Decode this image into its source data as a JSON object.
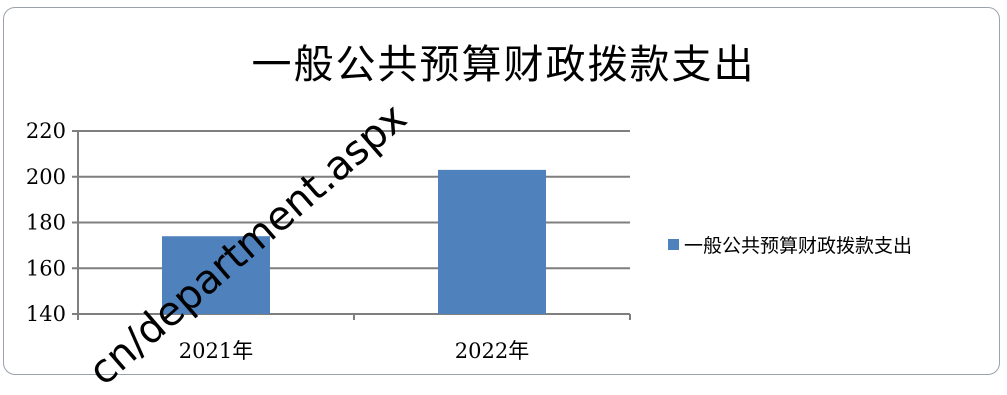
{
  "watermark": "cn/department.aspx",
  "chart_data": {
    "type": "bar",
    "title": "一般公共预算财政拨款支出",
    "categories": [
      "2021年",
      "2022年"
    ],
    "series": [
      {
        "name": "一般公共预算财政拨款支出",
        "values": [
          174,
          203
        ],
        "color": "#4f81bd"
      }
    ],
    "ylim": [
      140,
      220
    ],
    "yticks": [
      140,
      160,
      180,
      200,
      220
    ],
    "grid": true,
    "legend": "right",
    "xlabel": "",
    "ylabel": ""
  }
}
